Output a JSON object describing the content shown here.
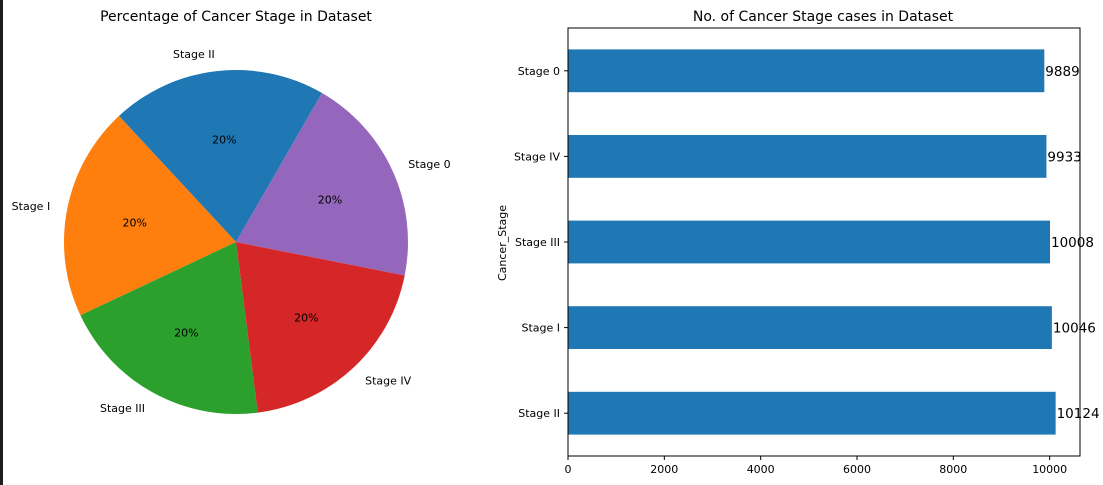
{
  "chart_data": [
    {
      "type": "pie",
      "title": "Percentage of Cancer Stage in Dataset",
      "labels": [
        "Stage II",
        "Stage I",
        "Stage III",
        "Stage IV",
        "Stage 0"
      ],
      "values": [
        10124,
        10046,
        10008,
        9933,
        9889
      ],
      "autopct": [
        "20%",
        "20%",
        "20%",
        "20%",
        "20%"
      ],
      "colors": [
        "#1f77b4",
        "#ff7f0e",
        "#2ca02c",
        "#d62728",
        "#9467bd"
      ],
      "start_angle_deg": 60,
      "direction": "counterclockwise"
    },
    {
      "type": "bar",
      "orientation": "horizontal",
      "title": "No. of Cancer Stage cases in Dataset",
      "ylabel": "Cancer_Stage",
      "xlabel": "",
      "categories": [
        "Stage 0",
        "Stage IV",
        "Stage III",
        "Stage I",
        "Stage II"
      ],
      "values": [
        9889,
        9933,
        10008,
        10046,
        10124
      ],
      "data_labels": [
        "9889",
        "9933",
        "10008",
        "10046",
        "10124"
      ],
      "xlim": [
        0,
        10630
      ],
      "xticks": [
        0,
        2000,
        4000,
        6000,
        8000,
        10000
      ],
      "bar_color": "#1f77b4"
    }
  ]
}
